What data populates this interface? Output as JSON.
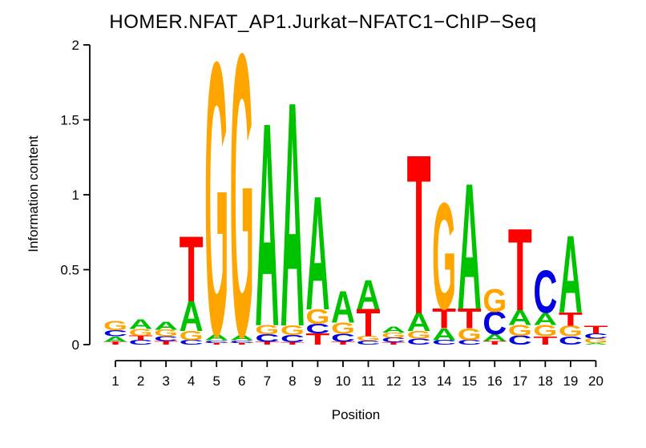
{
  "figure": {
    "background": "#ffffff",
    "axis_color": "#000000"
  },
  "chart_data": {
    "type": "sequence_logo",
    "title": "HOMER.NFAT_AP1.Jurkat−NFATC1−ChIP−Seq",
    "xlabel": "Position",
    "ylabel": "Information content",
    "ylim": [
      0,
      2
    ],
    "yticks": [
      0,
      0.5,
      1,
      1.5,
      2
    ],
    "ytick_labels": [
      "0",
      "0.5",
      "1",
      "1.5",
      "2"
    ],
    "xtick_labels": [
      "1",
      "2",
      "3",
      "4",
      "5",
      "6",
      "7",
      "8",
      "9",
      "10",
      "11",
      "12",
      "13",
      "14",
      "15",
      "16",
      "17",
      "18",
      "19",
      "20"
    ],
    "grid": false,
    "legend": "none",
    "alphabet_colors": {
      "A": "#00C300",
      "C": "#0000E0",
      "G": "#FFA500",
      "T": "#FF0000"
    },
    "stack_order_note": "letters listed bottom-to-top; ic = information content height of each letter",
    "stacks": [
      {
        "position": 1,
        "letters": [
          {
            "letter": "T",
            "ic": 0.02
          },
          {
            "letter": "A",
            "ic": 0.035
          },
          {
            "letter": "C",
            "ic": 0.04
          },
          {
            "letter": "G",
            "ic": 0.06
          }
        ]
      },
      {
        "position": 2,
        "letters": [
          {
            "letter": "C",
            "ic": 0.03
          },
          {
            "letter": "T",
            "ic": 0.03
          },
          {
            "letter": "G",
            "ic": 0.045
          },
          {
            "letter": "A",
            "ic": 0.065
          }
        ]
      },
      {
        "position": 3,
        "letters": [
          {
            "letter": "T",
            "ic": 0.025
          },
          {
            "letter": "C",
            "ic": 0.03
          },
          {
            "letter": "G",
            "ic": 0.045
          },
          {
            "letter": "A",
            "ic": 0.055
          }
        ]
      },
      {
        "position": 4,
        "letters": [
          {
            "letter": "C",
            "ic": 0.03
          },
          {
            "letter": "G",
            "ic": 0.06
          },
          {
            "letter": "A",
            "ic": 0.2
          },
          {
            "letter": "T",
            "ic": 0.43
          }
        ]
      },
      {
        "position": 5,
        "letters": [
          {
            "letter": "T",
            "ic": 0.012
          },
          {
            "letter": "C",
            "ic": 0.018
          },
          {
            "letter": "A",
            "ic": 0.04
          },
          {
            "letter": "G",
            "ic": 1.8
          }
        ]
      },
      {
        "position": 6,
        "letters": [
          {
            "letter": "T",
            "ic": 0.012
          },
          {
            "letter": "C",
            "ic": 0.018
          },
          {
            "letter": "A",
            "ic": 0.035
          },
          {
            "letter": "G",
            "ic": 1.86
          }
        ]
      },
      {
        "position": 7,
        "letters": [
          {
            "letter": "T",
            "ic": 0.02
          },
          {
            "letter": "C",
            "ic": 0.05
          },
          {
            "letter": "G",
            "ic": 0.06
          },
          {
            "letter": "A",
            "ic": 1.34
          }
        ]
      },
      {
        "position": 8,
        "letters": [
          {
            "letter": "T",
            "ic": 0.016
          },
          {
            "letter": "C",
            "ic": 0.048
          },
          {
            "letter": "G",
            "ic": 0.064
          },
          {
            "letter": "A",
            "ic": 1.48
          }
        ]
      },
      {
        "position": 9,
        "letters": [
          {
            "letter": "T",
            "ic": 0.075
          },
          {
            "letter": "C",
            "ic": 0.064
          },
          {
            "letter": "G",
            "ic": 0.096
          },
          {
            "letter": "A",
            "ic": 0.75
          }
        ]
      },
      {
        "position": 10,
        "letters": [
          {
            "letter": "T",
            "ic": 0.02
          },
          {
            "letter": "C",
            "ic": 0.053
          },
          {
            "letter": "G",
            "ic": 0.075
          },
          {
            "letter": "A",
            "ic": 0.21
          }
        ]
      },
      {
        "position": 11,
        "letters": [
          {
            "letter": "C",
            "ic": 0.027
          },
          {
            "letter": "G",
            "ic": 0.03
          },
          {
            "letter": "T",
            "ic": 0.18
          },
          {
            "letter": "A",
            "ic": 0.19
          }
        ]
      },
      {
        "position": 12,
        "letters": [
          {
            "letter": "T",
            "ic": 0.015
          },
          {
            "letter": "C",
            "ic": 0.03
          },
          {
            "letter": "G",
            "ic": 0.035
          },
          {
            "letter": "A",
            "ic": 0.04
          }
        ]
      },
      {
        "position": 13,
        "letters": [
          {
            "letter": "C",
            "ic": 0.04
          },
          {
            "letter": "G",
            "ic": 0.05
          },
          {
            "letter": "A",
            "ic": 0.12
          },
          {
            "letter": "T",
            "ic": 1.05
          }
        ]
      },
      {
        "position": 14,
        "letters": [
          {
            "letter": "C",
            "ic": 0.03
          },
          {
            "letter": "A",
            "ic": 0.08
          },
          {
            "letter": "T",
            "ic": 0.13
          },
          {
            "letter": "G",
            "ic": 0.7
          }
        ]
      },
      {
        "position": 15,
        "letters": [
          {
            "letter": "C",
            "ic": 0.03
          },
          {
            "letter": "G",
            "ic": 0.08
          },
          {
            "letter": "T",
            "ic": 0.13
          },
          {
            "letter": "A",
            "ic": 0.83
          }
        ]
      },
      {
        "position": 16,
        "letters": [
          {
            "letter": "T",
            "ic": 0.025
          },
          {
            "letter": "A",
            "ic": 0.045
          },
          {
            "letter": "C",
            "ic": 0.15
          },
          {
            "letter": "G",
            "ic": 0.15
          }
        ]
      },
      {
        "position": 17,
        "letters": [
          {
            "letter": "C",
            "ic": 0.06
          },
          {
            "letter": "G",
            "ic": 0.07
          },
          {
            "letter": "A",
            "ic": 0.1
          },
          {
            "letter": "T",
            "ic": 0.54
          }
        ]
      },
      {
        "position": 18,
        "letters": [
          {
            "letter": "T",
            "ic": 0.055
          },
          {
            "letter": "G",
            "ic": 0.075
          },
          {
            "letter": "A",
            "ic": 0.08
          },
          {
            "letter": "C",
            "ic": 0.28
          }
        ]
      },
      {
        "position": 19,
        "letters": [
          {
            "letter": "C",
            "ic": 0.055
          },
          {
            "letter": "G",
            "ic": 0.07
          },
          {
            "letter": "T",
            "ic": 0.09
          },
          {
            "letter": "A",
            "ic": 0.51
          }
        ]
      },
      {
        "position": 20,
        "letters": [
          {
            "letter": "A",
            "ic": 0.01
          },
          {
            "letter": "G",
            "ic": 0.03
          },
          {
            "letter": "C",
            "ic": 0.035
          },
          {
            "letter": "T",
            "ic": 0.05
          }
        ]
      }
    ]
  }
}
